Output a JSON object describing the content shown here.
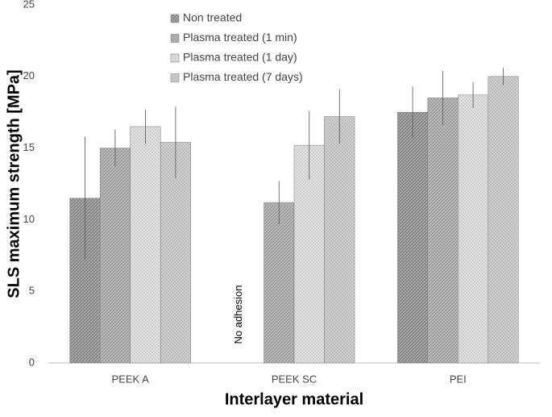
{
  "chart_data": {
    "type": "bar",
    "x_label": "Interlayer material",
    "y_label": "SLS maximum strength [MPa]",
    "categories": [
      "PEEK A",
      "PEEK SC",
      "PEI"
    ],
    "series": [
      {
        "name": "Non treated",
        "color": "#8c8c8c",
        "values": [
          11.5,
          null,
          17.5
        ],
        "errors": [
          4.3,
          null,
          1.8
        ]
      },
      {
        "name": "Plasma treated (1 min)",
        "color": "#a6a6a6",
        "values": [
          15.0,
          11.2,
          18.5
        ],
        "errors": [
          1.3,
          1.5,
          1.9
        ]
      },
      {
        "name": "Plasma treated (1 day)",
        "color": "#d9d9d9",
        "values": [
          16.5,
          15.2,
          18.7
        ],
        "errors": [
          1.2,
          2.4,
          0.9
        ]
      },
      {
        "name": "Plasma treated (7 days)",
        "color": "#c4c4c4",
        "values": [
          15.4,
          17.2,
          20.0
        ],
        "errors": [
          2.5,
          1.9,
          0.6
        ]
      }
    ],
    "annotation": "No adhesion",
    "ylim": [
      0,
      25
    ],
    "yticks": [
      0,
      5,
      10,
      15,
      20,
      25
    ],
    "grid": false,
    "legend": "top-left"
  }
}
